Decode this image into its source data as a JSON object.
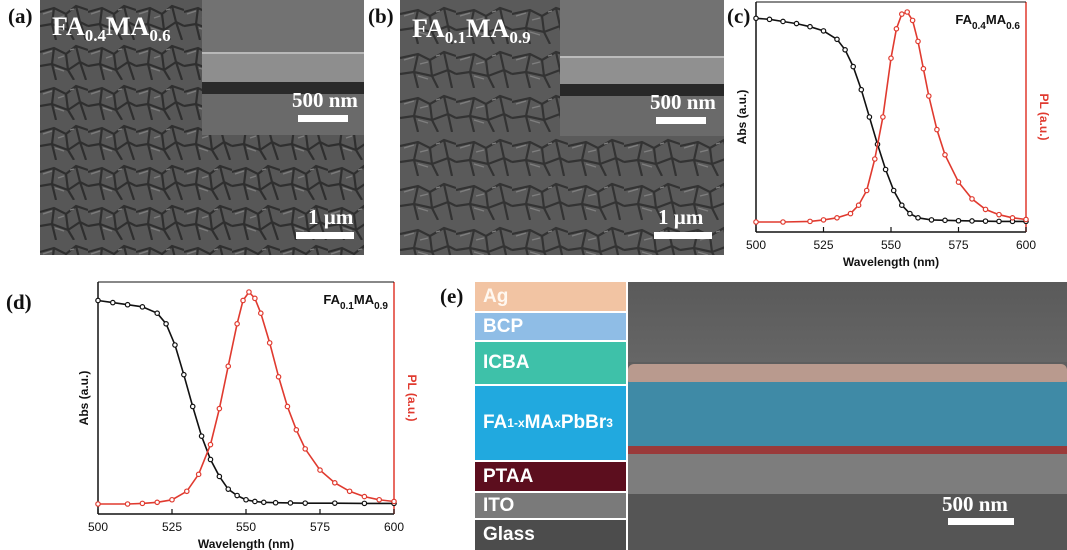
{
  "panels": {
    "a": {
      "label": "(a)",
      "title_main": "FA",
      "title_sub1": "0.4",
      "title_mid": "MA",
      "title_sub2": "0.6",
      "inset_scale": "500 nm",
      "scale": "1 µm"
    },
    "b": {
      "label": "(b)",
      "title_main": "FA",
      "title_sub1": "0.1",
      "title_mid": "MA",
      "title_sub2": "0.9",
      "inset_scale": "500 nm",
      "scale": "1 µm"
    },
    "c": {
      "label": "(c)"
    },
    "d": {
      "label": "(d)"
    },
    "e": {
      "label": "(e)",
      "scale": "500 nm",
      "layers": [
        {
          "name": "Ag",
          "color": "#f2c4a3"
        },
        {
          "name": "BCP",
          "color": "#8fbde6"
        },
        {
          "name": "ICBA",
          "color": "#3ec1a9"
        },
        {
          "name": "FA1-xMAxPbBr3",
          "color": "#21a9df"
        },
        {
          "name": "PTAA",
          "color": "#5c0e1e"
        },
        {
          "name": "ITO",
          "color": "#7a7a7a"
        },
        {
          "name": "Glass",
          "color": "#4c4c4c"
        }
      ],
      "pbbr_parts": {
        "a": "FA",
        "b": "1-x",
        "c": "MA",
        "d": "x",
        "e": "PbBr",
        "f": "3"
      }
    }
  },
  "chart_data": [
    {
      "type": "line",
      "panel": "c",
      "annotation": {
        "base1": "FA",
        "sub1": "0.4",
        "base2": "MA",
        "sub2": "0.6"
      },
      "xlabel": "Wavelength (nm)",
      "ylabel_left": "Abs (a.u.)",
      "ylabel_right": "PL (a.u.)",
      "xlim": [
        500,
        600
      ],
      "ylim": [
        0,
        1
      ],
      "xticks": [
        "500",
        "525",
        "550",
        "575",
        "600"
      ],
      "series": [
        {
          "axis": "left",
          "color": "#111111",
          "x": [
            500,
            505,
            510,
            515,
            520,
            525,
            530,
            533,
            536,
            539,
            542,
            545,
            548,
            551,
            554,
            557,
            560,
            565,
            570,
            575,
            580,
            585,
            590,
            595,
            600
          ],
          "y": [
            0.97,
            0.965,
            0.955,
            0.945,
            0.93,
            0.91,
            0.87,
            0.82,
            0.74,
            0.63,
            0.5,
            0.37,
            0.25,
            0.15,
            0.08,
            0.04,
            0.02,
            0.01,
            0.008,
            0.006,
            0.005,
            0.004,
            0.003,
            0.003,
            0.003
          ]
        },
        {
          "axis": "right",
          "color": "#e03a2f",
          "x": [
            500,
            510,
            520,
            525,
            530,
            535,
            538,
            541,
            544,
            547,
            550,
            552,
            554,
            556,
            558,
            560,
            562,
            564,
            567,
            570,
            575,
            580,
            585,
            590,
            595,
            600
          ],
          "y": [
            0.0,
            0.0,
            0.003,
            0.01,
            0.02,
            0.04,
            0.08,
            0.15,
            0.3,
            0.5,
            0.78,
            0.92,
            0.99,
            1.0,
            0.96,
            0.86,
            0.73,
            0.6,
            0.44,
            0.32,
            0.19,
            0.11,
            0.06,
            0.035,
            0.02,
            0.012
          ]
        }
      ]
    },
    {
      "type": "line",
      "panel": "d",
      "annotation": {
        "base1": "FA",
        "sub1": "0.1",
        "base2": "MA",
        "sub2": "0.9"
      },
      "xlabel": "Wavelength (nm)",
      "ylabel_left": "Abs (a.u.)",
      "ylabel_right": "PL (a.u.)",
      "xlim": [
        500,
        600
      ],
      "ylim": [
        0,
        1
      ],
      "xticks": [
        "500",
        "525",
        "550",
        "575",
        "600"
      ],
      "series": [
        {
          "axis": "left",
          "color": "#111111",
          "x": [
            500,
            505,
            510,
            515,
            520,
            523,
            526,
            529,
            532,
            535,
            538,
            541,
            544,
            547,
            550,
            553,
            556,
            560,
            565,
            570,
            580,
            590,
            600
          ],
          "y": [
            0.96,
            0.95,
            0.94,
            0.93,
            0.9,
            0.85,
            0.75,
            0.61,
            0.46,
            0.32,
            0.21,
            0.13,
            0.07,
            0.04,
            0.02,
            0.012,
            0.008,
            0.006,
            0.005,
            0.004,
            0.004,
            0.003,
            0.003
          ]
        },
        {
          "axis": "right",
          "color": "#e03a2f",
          "x": [
            500,
            510,
            515,
            520,
            525,
            530,
            534,
            538,
            541,
            544,
            547,
            549,
            551,
            553,
            555,
            558,
            561,
            564,
            567,
            570,
            575,
            580,
            585,
            590,
            595,
            600
          ],
          "y": [
            0.0,
            0.0,
            0.003,
            0.008,
            0.02,
            0.06,
            0.14,
            0.28,
            0.45,
            0.65,
            0.85,
            0.96,
            1.0,
            0.97,
            0.9,
            0.76,
            0.6,
            0.46,
            0.35,
            0.26,
            0.16,
            0.1,
            0.06,
            0.035,
            0.02,
            0.012
          ]
        }
      ]
    }
  ]
}
